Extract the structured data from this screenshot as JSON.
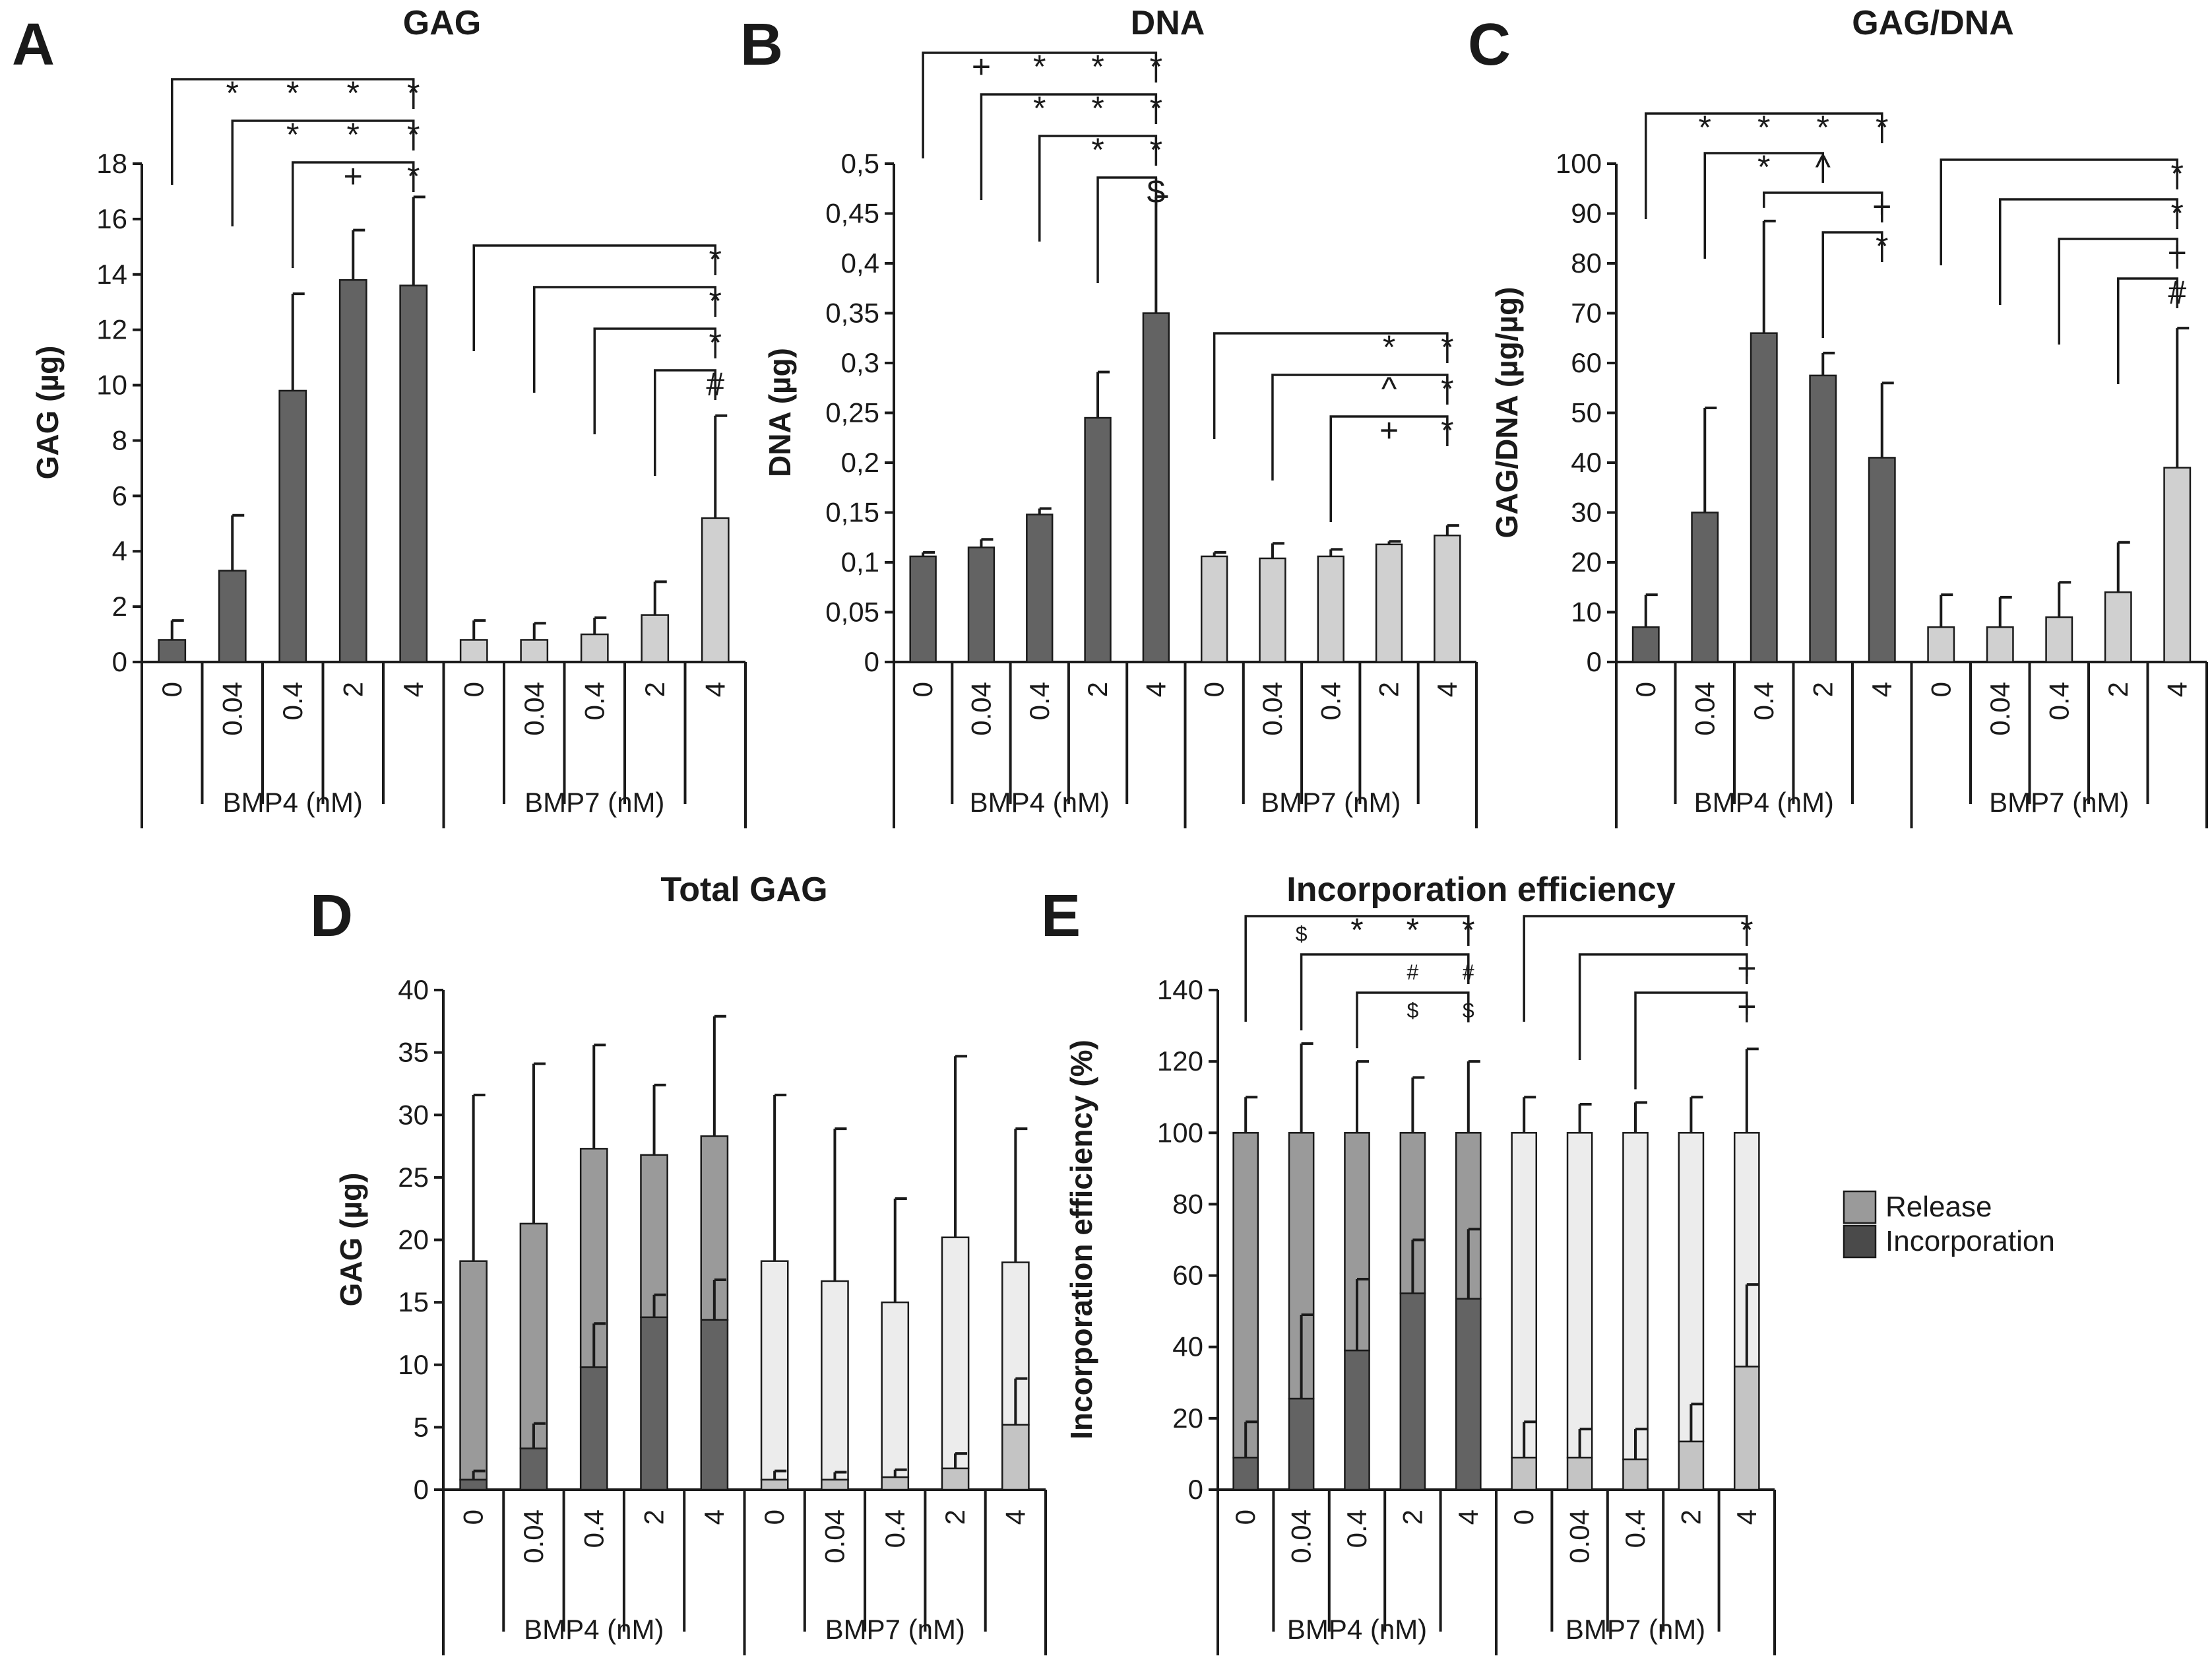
{
  "legend": {
    "release_label": "Release",
    "incorporation_label": "Incorporation",
    "release_color": "#9a9a9a",
    "incorporation_color": "#4a4a4a"
  },
  "chart_data": [
    {
      "panel": "A",
      "type": "bar",
      "title": "GAG",
      "ylabel": "GAG (µg)",
      "ylim": [
        0,
        18
      ],
      "yticks": [
        "0",
        "2",
        "4",
        "6",
        "8",
        "10",
        "12",
        "14",
        "16",
        "18"
      ],
      "categories": [
        "0",
        "0.04",
        "0.4",
        "2",
        "4",
        "0",
        "0.04",
        "0.4",
        "2",
        "4"
      ],
      "groups": [
        {
          "label": "BMP4 (nM)"
        },
        {
          "label": "BMP7 (nM)"
        }
      ],
      "values": [
        0.8,
        3.3,
        9.8,
        13.8,
        13.6,
        0.8,
        0.8,
        1.0,
        1.7,
        5.2
      ],
      "errors": [
        0.7,
        2.0,
        3.5,
        1.8,
        3.2,
        0.7,
        0.6,
        0.6,
        1.2,
        3.7
      ],
      "colors": [
        "#636363",
        "#636363",
        "#636363",
        "#636363",
        "#636363",
        "#d0d0d0",
        "#d0d0d0",
        "#d0d0d0",
        "#d0d0d0",
        "#d0d0d0"
      ],
      "brackets": [
        {
          "from": 0,
          "marks": [
            {
              "at": 1,
              "text": "*"
            },
            {
              "at": 2,
              "text": "*"
            },
            {
              "at": 3,
              "text": "*"
            },
            {
              "at": 4,
              "text": "*"
            }
          ]
        },
        {
          "from": 1,
          "marks": [
            {
              "at": 2,
              "text": "*"
            },
            {
              "at": 3,
              "text": "*"
            },
            {
              "at": 4,
              "text": "*"
            }
          ]
        },
        {
          "from": 2,
          "marks": [
            {
              "at": 3,
              "text": "+"
            },
            {
              "at": 4,
              "text": "*"
            }
          ]
        },
        {
          "from": 5,
          "marks": [
            {
              "at": 9,
              "text": "*"
            }
          ]
        },
        {
          "from": 6,
          "marks": [
            {
              "at": 9,
              "text": "*"
            }
          ]
        },
        {
          "from": 7,
          "marks": [
            {
              "at": 9,
              "text": "*"
            }
          ]
        },
        {
          "from": 8,
          "marks": [
            {
              "at": 9,
              "text": "#"
            }
          ]
        }
      ]
    },
    {
      "panel": "B",
      "type": "bar",
      "title": "DNA",
      "ylabel": "DNA (µg)",
      "ylim": [
        0,
        0.5
      ],
      "yticks": [
        "0",
        "0,05",
        "0,1",
        "0,15",
        "0,2",
        "0,25",
        "0,3",
        "0,35",
        "0,4",
        "0,45",
        "0,5"
      ],
      "categories": [
        "0",
        "0.04",
        "0.4",
        "2",
        "4",
        "0",
        "0.04",
        "0.4",
        "2",
        "4"
      ],
      "groups": [
        {
          "label": "BMP4 (nM)"
        },
        {
          "label": "BMP7 (nM)"
        }
      ],
      "values": [
        0.106,
        0.115,
        0.148,
        0.245,
        0.35,
        0.106,
        0.104,
        0.106,
        0.118,
        0.127
      ],
      "errors": [
        0.004,
        0.008,
        0.006,
        0.046,
        0.117,
        0.004,
        0.015,
        0.007,
        0.003,
        0.01
      ],
      "colors": [
        "#636363",
        "#636363",
        "#636363",
        "#636363",
        "#636363",
        "#d0d0d0",
        "#d0d0d0",
        "#d0d0d0",
        "#d0d0d0",
        "#d0d0d0"
      ],
      "brackets": [
        {
          "from": 0,
          "marks": [
            {
              "at": 1,
              "text": "+"
            },
            {
              "at": 2,
              "text": "*"
            },
            {
              "at": 3,
              "text": "*"
            },
            {
              "at": 4,
              "text": "*"
            }
          ]
        },
        {
          "from": 1,
          "marks": [
            {
              "at": 2,
              "text": "*"
            },
            {
              "at": 3,
              "text": "*"
            },
            {
              "at": 4,
              "text": "*"
            }
          ]
        },
        {
          "from": 2,
          "marks": [
            {
              "at": 3,
              "text": "*"
            },
            {
              "at": 4,
              "text": "*"
            }
          ]
        },
        {
          "from": 3,
          "marks": [
            {
              "at": 4,
              "text": "$"
            }
          ]
        },
        {
          "from": 5,
          "marks": [
            {
              "at": 8,
              "text": "*"
            },
            {
              "at": 9,
              "text": "*"
            }
          ]
        },
        {
          "from": 6,
          "marks": [
            {
              "at": 8,
              "text": "^"
            },
            {
              "at": 9,
              "text": "*"
            }
          ]
        },
        {
          "from": 7,
          "marks": [
            {
              "at": 8,
              "text": "+"
            },
            {
              "at": 9,
              "text": "*"
            }
          ]
        }
      ]
    },
    {
      "panel": "C",
      "type": "bar",
      "title": "GAG/DNA",
      "ylabel": "GAG/DNA (µg/µg)",
      "ylim": [
        0,
        100
      ],
      "yticks": [
        "0",
        "10",
        "20",
        "30",
        "40",
        "50",
        "60",
        "70",
        "80",
        "90",
        "100"
      ],
      "categories": [
        "0",
        "0.04",
        "0.4",
        "2",
        "4",
        "0",
        "0.04",
        "0.4",
        "2",
        "4"
      ],
      "groups": [
        {
          "label": "BMP4 (nM)"
        },
        {
          "label": "BMP7 (nM)"
        }
      ],
      "values": [
        7,
        30,
        66,
        57.5,
        41,
        7,
        7,
        9,
        14,
        39
      ],
      "errors": [
        6.5,
        21,
        22.5,
        4.5,
        15,
        6.5,
        6,
        7,
        10,
        28
      ],
      "colors": [
        "#636363",
        "#636363",
        "#636363",
        "#636363",
        "#636363",
        "#d0d0d0",
        "#d0d0d0",
        "#d0d0d0",
        "#d0d0d0",
        "#d0d0d0"
      ],
      "brackets": [
        {
          "from": 0,
          "marks": [
            {
              "at": 1,
              "text": "*"
            },
            {
              "at": 2,
              "text": "*"
            },
            {
              "at": 3,
              "text": "*"
            },
            {
              "at": 4,
              "text": "*"
            }
          ]
        },
        {
          "from": 1,
          "marks": [
            {
              "at": 2,
              "text": "*"
            },
            {
              "at": 3,
              "text": "^"
            }
          ]
        },
        {
          "from": 2,
          "marks": [
            {
              "at": 4,
              "text": "+"
            }
          ]
        },
        {
          "from": 3,
          "marks": [
            {
              "at": 4,
              "text": "*"
            }
          ]
        },
        {
          "from": 5,
          "marks": [
            {
              "at": 9,
              "text": "*"
            }
          ]
        },
        {
          "from": 6,
          "marks": [
            {
              "at": 9,
              "text": "*"
            }
          ]
        },
        {
          "from": 7,
          "marks": [
            {
              "at": 9,
              "text": "+"
            }
          ]
        },
        {
          "from": 8,
          "marks": [
            {
              "at": 9,
              "text": "#"
            }
          ]
        }
      ]
    },
    {
      "panel": "D",
      "type": "bar",
      "stacked": true,
      "title": "Total GAG",
      "ylabel": "GAG (µg)",
      "ylim": [
        0,
        40
      ],
      "yticks": [
        "0",
        "5",
        "10",
        "15",
        "20",
        "25",
        "30",
        "35",
        "40"
      ],
      "categories": [
        "0",
        "0.04",
        "0.4",
        "2",
        "4",
        "0",
        "0.04",
        "0.4",
        "2",
        "4"
      ],
      "groups": [
        {
          "label": "BMP4 (nM)"
        },
        {
          "label": "BMP7 (nM)"
        }
      ],
      "series": [
        {
          "name": "Incorporation",
          "values": [
            0.8,
            3.3,
            9.8,
            13.8,
            13.6,
            0.8,
            0.8,
            1.0,
            1.7,
            5.2
          ],
          "errors": [
            0.7,
            2.0,
            3.5,
            1.8,
            3.2,
            0.7,
            0.6,
            0.6,
            1.2,
            3.7
          ]
        },
        {
          "name": "Release",
          "totals": [
            18.3,
            21.3,
            27.3,
            26.8,
            28.3,
            18.3,
            16.7,
            15.0,
            20.2,
            18.2
          ],
          "total_errors": [
            13.3,
            12.8,
            8.3,
            5.6,
            9.6,
            13.3,
            12.2,
            8.3,
            14.5,
            10.7
          ]
        }
      ],
      "incorporation_colors": [
        "#636363",
        "#636363",
        "#636363",
        "#636363",
        "#636363",
        "#c4c4c4",
        "#c4c4c4",
        "#c4c4c4",
        "#c4c4c4",
        "#c4c4c4"
      ],
      "release_colors": [
        "#9a9a9a",
        "#9a9a9a",
        "#9a9a9a",
        "#9a9a9a",
        "#9a9a9a",
        "#ececec",
        "#ececec",
        "#ececec",
        "#ececec",
        "#ececec"
      ],
      "brackets": []
    },
    {
      "panel": "E",
      "type": "bar",
      "stacked": true,
      "title": "Incorporation efficiency",
      "ylabel": "Incorporation efficiency (%)",
      "ylim": [
        0,
        140
      ],
      "yticks": [
        "0",
        "20",
        "40",
        "60",
        "80",
        "100",
        "120",
        "140"
      ],
      "categories": [
        "0",
        "0.04",
        "0.4",
        "2",
        "4",
        "0",
        "0.04",
        "0.4",
        "2",
        "4"
      ],
      "groups": [
        {
          "label": "BMP4 (nM)"
        },
        {
          "label": "BMP7 (nM)"
        }
      ],
      "series": [
        {
          "name": "Incorporation",
          "values": [
            9,
            25.5,
            39,
            55,
            53.5,
            9,
            9,
            8.5,
            13.5,
            34.5
          ],
          "errors": [
            10,
            23.5,
            20,
            15,
            19.5,
            10,
            8,
            8.5,
            10.5,
            23
          ]
        },
        {
          "name": "Release",
          "totals": [
            100,
            100,
            100,
            100,
            100,
            100,
            100,
            100,
            100,
            100
          ],
          "total_errors": [
            10,
            25,
            20,
            15.5,
            20,
            10,
            8,
            8.5,
            10,
            23.5
          ]
        }
      ],
      "incorporation_colors": [
        "#636363",
        "#636363",
        "#636363",
        "#636363",
        "#636363",
        "#c4c4c4",
        "#c4c4c4",
        "#c4c4c4",
        "#c4c4c4",
        "#c4c4c4"
      ],
      "release_colors": [
        "#9a9a9a",
        "#9a9a9a",
        "#9a9a9a",
        "#9a9a9a",
        "#9a9a9a",
        "#ececec",
        "#ececec",
        "#ececec",
        "#ececec",
        "#ececec"
      ],
      "brackets": [
        {
          "from": 0,
          "marks": [
            {
              "at": 1,
              "text": "$",
              "small": true
            },
            {
              "at": 2,
              "text": "*"
            },
            {
              "at": 3,
              "text": "*"
            },
            {
              "at": 4,
              "text": "*"
            }
          ]
        },
        {
          "from": 1,
          "marks": [
            {
              "at": 3,
              "text": "#",
              "small": true
            },
            {
              "at": 4,
              "text": "#",
              "small": true
            }
          ]
        },
        {
          "from": 2,
          "marks": [
            {
              "at": 3,
              "text": "$",
              "small": true
            },
            {
              "at": 4,
              "text": "$",
              "small": true
            }
          ]
        },
        {
          "from": 5,
          "marks": [
            {
              "at": 9,
              "text": "*"
            }
          ]
        },
        {
          "from": 6,
          "marks": [
            {
              "at": 9,
              "text": "+"
            }
          ]
        },
        {
          "from": 7,
          "marks": [
            {
              "at": 9,
              "text": "+"
            }
          ]
        }
      ]
    }
  ]
}
